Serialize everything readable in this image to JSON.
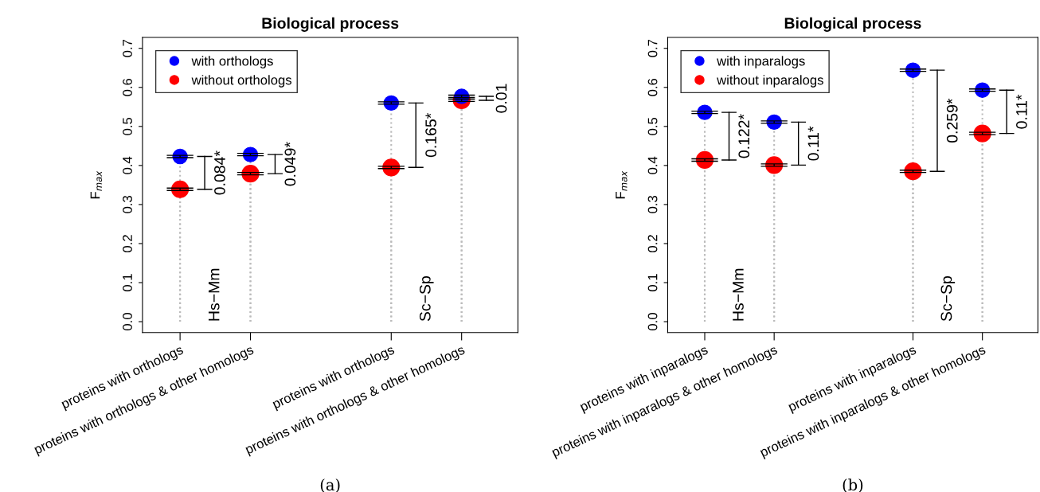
{
  "chart_data": [
    {
      "type": "lollipop",
      "title": "Biological process",
      "ylabel": "F$_{max}$",
      "categories": [
        "proteins with orthologs",
        "proteins with orthologs & other homologs",
        null,
        "proteins with orthologs",
        "proteins with orthologs & other homologs"
      ],
      "series": [
        {
          "name": "with orthologs",
          "color": "#0000ff",
          "values": [
            0.423,
            0.428,
            null,
            0.56,
            0.577
          ],
          "errors": [
            0.003,
            0.003,
            null,
            0.003,
            0.003
          ]
        },
        {
          "name": "without orthologs",
          "color": "#ff0000",
          "values": [
            0.339,
            0.379,
            null,
            0.395,
            0.567
          ],
          "errors": [
            0.003,
            0.003,
            null,
            0.003,
            0.003
          ]
        }
      ],
      "ylim": [
        -0.028,
        0.728
      ],
      "yticks": [
        {
          "value": 0,
          "label": "0.0"
        },
        0.1,
        0.2,
        0.3,
        0.4,
        0.5,
        0.6,
        0.7
      ],
      "legend": "top left",
      "marker": "circle",
      "line_style": "dotted",
      "grid": "x",
      "annotations": [
        "0.084*",
        "0.049*",
        "0.165*",
        "0.01",
        "Hs−Mm",
        "Sc−Sp",
        "(a)"
      ]
    },
    {
      "type": "lollipop",
      "title": "Biological process",
      "ylabel": "F$_{max}$",
      "categories": [
        "proteins with inparalogs",
        "proteins with inparalogs & other homologs",
        null,
        "proteins with inparalogs",
        "proteins with inparalogs & other homologs"
      ],
      "series": [
        {
          "name": "with inparalogs",
          "color": "#0000ff",
          "values": [
            0.536,
            0.511,
            null,
            0.644,
            0.593
          ],
          "errors": [
            0.003,
            0.003,
            null,
            0.003,
            0.003
          ]
        },
        {
          "name": "without inparalogs",
          "color": "#ff0000",
          "values": [
            0.414,
            0.401,
            null,
            0.385,
            0.482
          ],
          "errors": [
            0.003,
            0.003,
            null,
            0.003,
            0.003
          ]
        }
      ],
      "ylim": [
        -0.028,
        0.728
      ],
      "yticks": [
        {
          "value": 0,
          "label": "0.0"
        },
        0.1,
        0.2,
        0.3,
        0.4,
        0.5,
        0.6,
        0.7
      ],
      "legend": "top left",
      "marker": "circle",
      "line_style": "dotted",
      "grid": "x",
      "annotations": [
        "0.122*",
        "0.11*",
        "0.259*",
        "0.11*",
        "Hs−Mm",
        "Sc−Sp",
        "(b)"
      ]
    }
  ]
}
